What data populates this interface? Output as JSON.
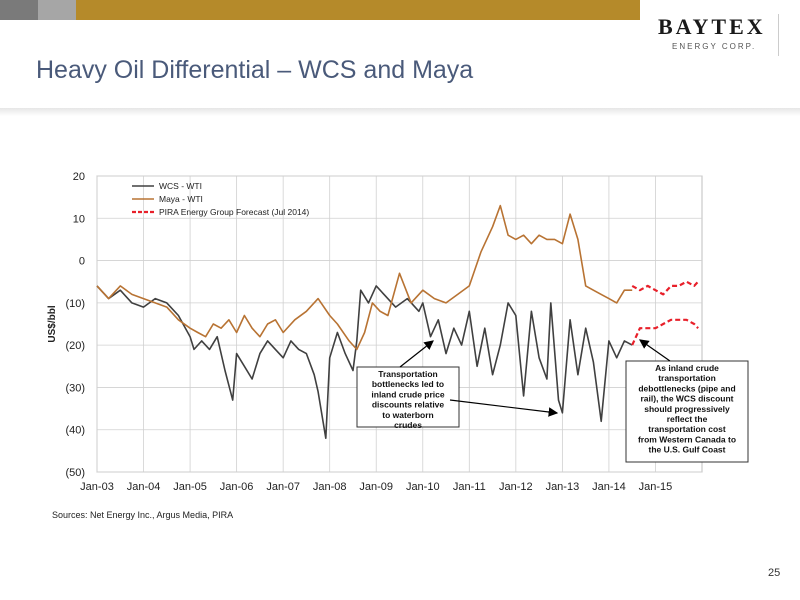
{
  "slide": {
    "title": "Heavy Oil Differential – WCS and Maya",
    "source": "Sources: Net Energy Inc., Argus Media, PIRA",
    "page_number": "25",
    "logo_word": "BAYTEX",
    "logo_sub": "ENERGY CORP."
  },
  "colors": {
    "wcs": "#404040",
    "maya": "#b87333",
    "forecast": "#e8202a",
    "accent_bar": "#b58a2a"
  },
  "chart_data": {
    "type": "line",
    "title": "",
    "xlabel": "",
    "ylabel": "US$/bbl",
    "ylim": [
      -50,
      20
    ],
    "xlim": [
      "2003-01",
      "2016-01"
    ],
    "yticks": [
      "20",
      "10",
      "0",
      "(10)",
      "(20)",
      "(30)",
      "(40)",
      "(50)"
    ],
    "xticks": [
      "Jan-03",
      "Jan-04",
      "Jan-05",
      "Jan-06",
      "Jan-07",
      "Jan-08",
      "Jan-09",
      "Jan-10",
      "Jan-11",
      "Jan-12",
      "Jan-13",
      "Jan-14",
      "Jan-15"
    ],
    "grid": true,
    "legend": "top-left",
    "series": [
      {
        "name": "WCS - WTI",
        "x": [
          "2003-01",
          "2003-04",
          "2003-07",
          "2003-10",
          "2004-01",
          "2004-04",
          "2004-07",
          "2004-10",
          "2005-01",
          "2005-02",
          "2005-04",
          "2005-06",
          "2005-08",
          "2005-10",
          "2005-12",
          "2006-01",
          "2006-03",
          "2006-05",
          "2006-07",
          "2006-09",
          "2006-11",
          "2007-01",
          "2007-03",
          "2007-05",
          "2007-07",
          "2007-09",
          "2007-10",
          "2007-12",
          "2008-01",
          "2008-03",
          "2008-05",
          "2008-07",
          "2008-08",
          "2008-09",
          "2008-11",
          "2009-01",
          "2009-03",
          "2009-06",
          "2009-09",
          "2009-12",
          "2010-01",
          "2010-03",
          "2010-05",
          "2010-07",
          "2010-09",
          "2010-11",
          "2011-01",
          "2011-03",
          "2011-05",
          "2011-07",
          "2011-09",
          "2011-11",
          "2012-01",
          "2012-03",
          "2012-05",
          "2012-07",
          "2012-09",
          "2012-10",
          "2012-12",
          "2013-01",
          "2013-03",
          "2013-05",
          "2013-07",
          "2013-09",
          "2013-11",
          "2014-01",
          "2014-03",
          "2014-05",
          "2014-07"
        ],
        "values": [
          -6,
          -9,
          -7,
          -10,
          -11,
          -9,
          -10,
          -13,
          -18,
          -21,
          -19,
          -21,
          -18,
          -26,
          -33,
          -22,
          -25,
          -28,
          -22,
          -19,
          -21,
          -23,
          -19,
          -21,
          -22,
          -27,
          -31,
          -42,
          -23,
          -17,
          -22,
          -26,
          -19,
          -7,
          -10,
          -6,
          -8,
          -11,
          -9,
          -12,
          -10,
          -18,
          -14,
          -22,
          -16,
          -20,
          -12,
          -25,
          -16,
          -27,
          -20,
          -10,
          -13,
          -32,
          -12,
          -23,
          -28,
          -10,
          -33,
          -36,
          -14,
          -27,
          -16,
          -24,
          -38,
          -19,
          -23,
          -19,
          -20
        ]
      },
      {
        "name": "Maya - WTI",
        "x": [
          "2003-01",
          "2003-04",
          "2003-07",
          "2003-10",
          "2004-01",
          "2004-04",
          "2004-07",
          "2004-10",
          "2005-01",
          "2005-03",
          "2005-05",
          "2005-07",
          "2005-09",
          "2005-11",
          "2006-01",
          "2006-03",
          "2006-05",
          "2006-07",
          "2006-09",
          "2006-11",
          "2007-01",
          "2007-04",
          "2007-07",
          "2007-10",
          "2008-01",
          "2008-03",
          "2008-06",
          "2008-08",
          "2008-10",
          "2008-12",
          "2009-02",
          "2009-04",
          "2009-07",
          "2009-10",
          "2010-01",
          "2010-04",
          "2010-07",
          "2010-10",
          "2011-01",
          "2011-04",
          "2011-07",
          "2011-09",
          "2011-11",
          "2012-01",
          "2012-03",
          "2012-05",
          "2012-07",
          "2012-09",
          "2012-11",
          "2013-01",
          "2013-03",
          "2013-05",
          "2013-07",
          "2013-09",
          "2013-11",
          "2014-01",
          "2014-03",
          "2014-05",
          "2014-07"
        ],
        "values": [
          -6,
          -9,
          -6,
          -8,
          -9,
          -10,
          -11,
          -14,
          -16,
          -17,
          -18,
          -15,
          -16,
          -14,
          -17,
          -13,
          -16,
          -18,
          -15,
          -14,
          -17,
          -14,
          -12,
          -9,
          -13,
          -15,
          -19,
          -21,
          -17,
          -10,
          -12,
          -13,
          -3,
          -10,
          -7,
          -9,
          -10,
          -8,
          -6,
          2,
          8,
          13,
          6,
          5,
          6,
          4,
          6,
          5,
          5,
          4,
          11,
          5,
          -6,
          -7,
          -8,
          -9,
          -10,
          -7,
          -7
        ]
      },
      {
        "name": "PIRA Energy Group Forecast (Jul 2014)",
        "x": [
          "2014-07",
          "2014-09",
          "2014-11",
          "2015-01",
          "2015-03",
          "2015-05",
          "2015-07",
          "2015-09",
          "2015-11",
          "2015-12",
          "2014-07",
          "2014-09",
          "2014-11",
          "2015-01",
          "2015-03",
          "2015-05",
          "2015-07",
          "2015-09",
          "2015-11",
          "2015-12"
        ],
        "values": [
          -6,
          -7,
          -6,
          -7,
          -8,
          -6,
          -6,
          -5,
          -6,
          -5,
          -20,
          -16,
          -16,
          -16,
          -15,
          -14,
          -14,
          -14,
          -15,
          -16
        ]
      }
    ],
    "annotations": [
      "Transportation bottlenecks led to inland crude price discounts relative to waterborn crudes",
      "As inland crude transportation debottlenecks (pipe and rail), the WCS discount should progressively reflect the transportation cost from Western Canada to the U.S. Gulf Coast"
    ]
  }
}
